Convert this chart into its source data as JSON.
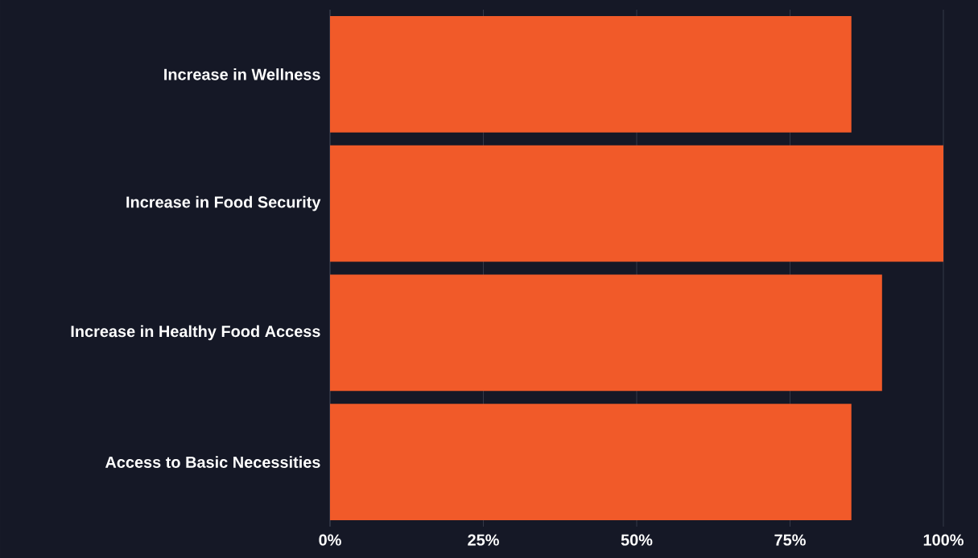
{
  "chart_data": {
    "type": "bar",
    "orientation": "horizontal",
    "categories": [
      "Increase in Wellness",
      "Increase in Food Security",
      "Increase in Healthy Food Access",
      "Access to Basic Necessities"
    ],
    "values": [
      85,
      100,
      90,
      85
    ],
    "color": "#f15a29",
    "xlim": [
      0,
      100
    ],
    "xticks": [
      {
        "value": 0,
        "label": "0%"
      },
      {
        "value": 25,
        "label": "25%"
      },
      {
        "value": 50,
        "label": "50%"
      },
      {
        "value": 75,
        "label": "75%"
      },
      {
        "value": 100,
        "label": "100%"
      }
    ],
    "grid": "x"
  }
}
